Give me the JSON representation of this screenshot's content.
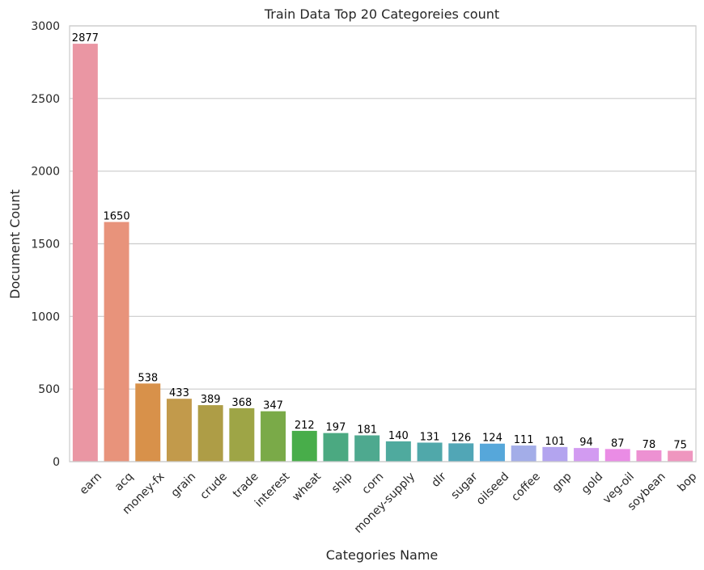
{
  "chart_data": {
    "type": "bar",
    "title": "Train Data Top 20 Categoreies count",
    "xlabel": "Categories Name",
    "ylabel": "Document Count",
    "ylim": [
      0,
      3000
    ],
    "yticks": [
      0,
      500,
      1000,
      1500,
      2000,
      2500,
      3000
    ],
    "grid": "horizontal",
    "categories": [
      "earn",
      "acq",
      "money-fx",
      "grain",
      "crude",
      "trade",
      "interest",
      "wheat",
      "ship",
      "corn",
      "money-supply",
      "dlr",
      "sugar",
      "oilseed",
      "coffee",
      "gnp",
      "gold",
      "veg-oil",
      "soybean",
      "bop"
    ],
    "values": [
      2877,
      1650,
      538,
      433,
      389,
      368,
      347,
      212,
      197,
      181,
      140,
      131,
      126,
      124,
      111,
      101,
      94,
      87,
      78,
      75
    ],
    "colors": [
      "#ea96a3",
      "#e8937b",
      "#d8914a",
      "#c29a4b",
      "#ae9d46",
      "#9ea546",
      "#7aaa48",
      "#48ad4a",
      "#4ba981",
      "#4ea98f",
      "#4faa9e",
      "#50a8aa",
      "#51a6b6",
      "#56a7da",
      "#a3ade8",
      "#b3a4ef",
      "#d29bf1",
      "#ea8ce5",
      "#ed91d2",
      "#ef96bf"
    ]
  }
}
